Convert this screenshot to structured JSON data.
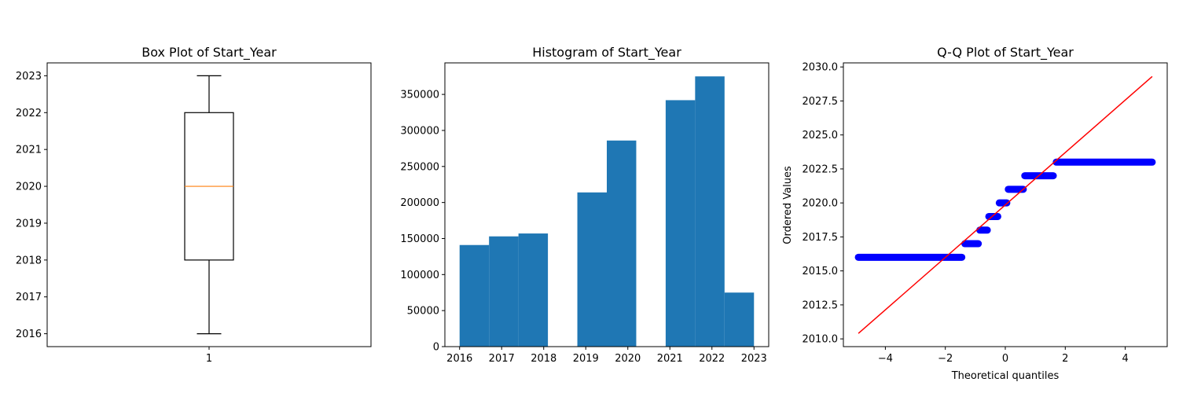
{
  "colors": {
    "hist_bar": "#1f77b4",
    "box_median": "#ff7f0e",
    "qq_points": "#0000ff",
    "qq_line": "#ff0000",
    "axes": "#000000"
  },
  "chart_data": [
    {
      "type": "box",
      "title": "Box Plot of Start_Year",
      "xlabel": "",
      "ylabel": "",
      "categories": [
        "1"
      ],
      "stats": {
        "min": 2016,
        "q1": 2018,
        "median": 2020,
        "q3": 2022,
        "max": 2023
      },
      "ylim": [
        2015.65,
        2023.35
      ],
      "yticks": [
        2016,
        2017,
        2018,
        2019,
        2020,
        2021,
        2022,
        2023
      ],
      "grid": false
    },
    {
      "type": "bar",
      "title": "Histogram of Start_Year",
      "xlabel": "",
      "ylabel": "",
      "bins": [
        {
          "x0": 2016.0,
          "x1": 2016.7,
          "value": 141000
        },
        {
          "x0": 2016.7,
          "x1": 2017.4,
          "value": 153000
        },
        {
          "x0": 2017.4,
          "x1": 2018.1,
          "value": 157000
        },
        {
          "x0": 2018.1,
          "x1": 2018.8,
          "value": 0
        },
        {
          "x0": 2018.8,
          "x1": 2019.5,
          "value": 214000
        },
        {
          "x0": 2019.5,
          "x1": 2020.2,
          "value": 286000
        },
        {
          "x0": 2020.2,
          "x1": 2020.9,
          "value": 0
        },
        {
          "x0": 2020.9,
          "x1": 2021.6,
          "value": 342000
        },
        {
          "x0": 2021.6,
          "x1": 2022.3,
          "value": 375000
        },
        {
          "x0": 2022.3,
          "x1": 2023.0,
          "value": 75000
        }
      ],
      "xlim": [
        2015.65,
        2023.35
      ],
      "ylim": [
        0,
        393750
      ],
      "xticks": [
        2016,
        2017,
        2018,
        2019,
        2020,
        2021,
        2022,
        2023
      ],
      "yticks": [
        0,
        50000,
        100000,
        150000,
        200000,
        250000,
        300000,
        350000
      ],
      "grid": false
    },
    {
      "type": "scatter",
      "title": "Q-Q Plot of Start_Year",
      "xlabel": "Theoretical quantiles",
      "ylabel": "Ordered Values",
      "xlim": [
        -5.4,
        5.4
      ],
      "ylim": [
        2009.43,
        2030.3
      ],
      "xticks": [
        -4,
        -2,
        0,
        2,
        4
      ],
      "yticks": [
        2010.0,
        2012.5,
        2015.0,
        2017.5,
        2020.0,
        2022.5,
        2025.0,
        2027.5,
        2030.0
      ],
      "ytick_labels": [
        "2010.0",
        "2012.5",
        "2015.0",
        "2017.5",
        "2020.0",
        "2022.5",
        "2025.0",
        "2027.5",
        "2030.0"
      ],
      "steps": [
        {
          "y": 2016,
          "x0": -4.9,
          "x1": -1.45
        },
        {
          "y": 2017,
          "x0": -1.35,
          "x1": -0.9
        },
        {
          "y": 2018,
          "x0": -0.85,
          "x1": -0.6
        },
        {
          "y": 2019,
          "x0": -0.55,
          "x1": -0.25
        },
        {
          "y": 2020,
          "x0": -0.2,
          "x1": 0.05
        },
        {
          "y": 2021,
          "x0": 0.1,
          "x1": 0.6
        },
        {
          "y": 2022,
          "x0": 0.65,
          "x1": 1.6
        },
        {
          "y": 2023,
          "x0": 1.7,
          "x1": 4.9
        }
      ],
      "fit_line": {
        "x": [
          -4.9,
          4.9
        ],
        "y": [
          2010.4,
          2029.3
        ]
      },
      "grid": false
    }
  ]
}
